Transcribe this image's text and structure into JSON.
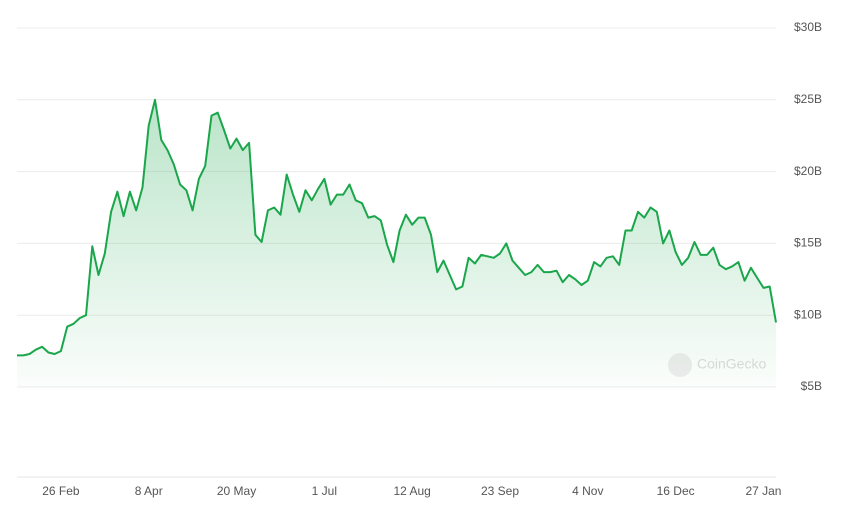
{
  "chart_data": {
    "type": "area",
    "watermark": "CoinGecko",
    "color": "#1aa64a",
    "grid": true,
    "categories": [
      null,
      null,
      null,
      null,
      null,
      null,
      null,
      "26 Feb",
      null,
      null,
      null,
      null,
      null,
      null,
      null,
      null,
      null,
      null,
      null,
      null,
      null,
      "8 Apr",
      null,
      null,
      null,
      null,
      null,
      null,
      null,
      null,
      null,
      null,
      null,
      null,
      null,
      "20 May",
      null,
      null,
      null,
      null,
      null,
      null,
      null,
      null,
      null,
      null,
      null,
      null,
      null,
      "1 Jul",
      null,
      null,
      null,
      null,
      null,
      null,
      null,
      null,
      null,
      null,
      null,
      null,
      null,
      "12 Aug",
      null,
      null,
      null,
      null,
      null,
      null,
      null,
      null,
      null,
      null,
      null,
      null,
      null,
      "23 Sep",
      null,
      null,
      null,
      null,
      null,
      null,
      null,
      null,
      null,
      null,
      null,
      null,
      null,
      "4 Nov",
      null,
      null,
      null,
      null,
      null,
      null,
      null,
      null,
      null,
      null,
      null,
      null,
      null,
      "16 Dec",
      null,
      null,
      null,
      null,
      null,
      null,
      null,
      null,
      null,
      null,
      null,
      null,
      null,
      "27 Jan",
      null,
      null
    ],
    "values": [
      7.2,
      7.2,
      7.3,
      7.6,
      7.8,
      7.4,
      7.3,
      7.5,
      9.2,
      9.4,
      9.8,
      10.0,
      14.8,
      12.8,
      14.3,
      17.2,
      18.6,
      16.9,
      18.6,
      17.3,
      18.9,
      23.2,
      25.0,
      22.2,
      21.5,
      20.5,
      19.1,
      18.7,
      17.3,
      19.5,
      20.4,
      23.9,
      24.1,
      22.9,
      21.6,
      22.3,
      21.5,
      22.0,
      15.6,
      15.1,
      17.3,
      17.5,
      17.0,
      19.8,
      18.4,
      17.2,
      18.7,
      18.0,
      18.8,
      19.5,
      17.7,
      18.4,
      18.4,
      19.1,
      18.0,
      17.8,
      16.8,
      16.9,
      16.6,
      14.9,
      13.7,
      15.9,
      17.0,
      16.3,
      16.8,
      16.8,
      15.6,
      13.0,
      13.8,
      12.8,
      11.8,
      12.0,
      14.0,
      13.6,
      14.2,
      14.1,
      14.0,
      14.3,
      15.0,
      13.8,
      13.3,
      12.8,
      13.0,
      13.5,
      13.0,
      13.0,
      13.1,
      12.3,
      12.8,
      12.5,
      12.1,
      12.4,
      13.7,
      13.4,
      14.0,
      14.1,
      13.5,
      15.9,
      15.9,
      17.2,
      16.8,
      17.5,
      17.2,
      15.0,
      15.9,
      14.4,
      13.5,
      14.0,
      15.1,
      14.2,
      14.2,
      14.7,
      13.5,
      13.2,
      13.4,
      13.7,
      12.4,
      13.3,
      12.6,
      11.9,
      12.0,
      9.5
    ],
    "ylim": [
      5,
      30
    ],
    "yticks": [
      {
        "value": 5,
        "label": "$5B"
      },
      {
        "value": 10,
        "label": "$10B"
      },
      {
        "value": 15,
        "label": "$15B"
      },
      {
        "value": 20,
        "label": "$20B"
      },
      {
        "value": 25,
        "label": "$25B"
      },
      {
        "value": 30,
        "label": "$30B"
      }
    ]
  }
}
